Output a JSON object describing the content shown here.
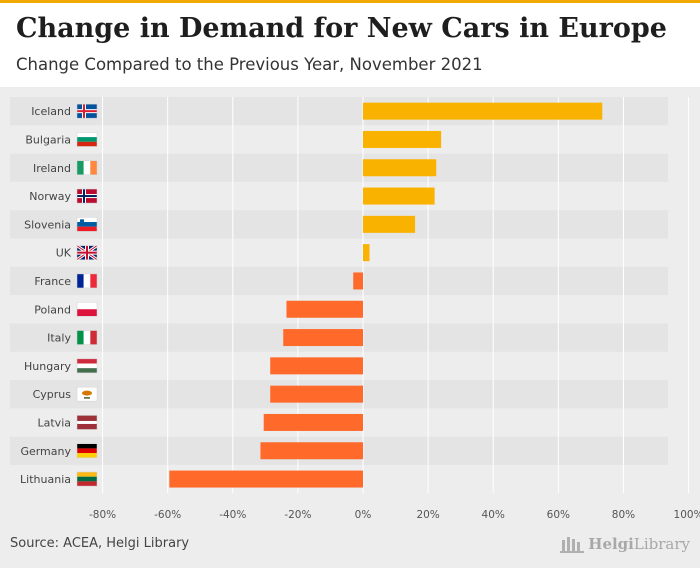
{
  "title": "Change in Demand for New Cars in Europe",
  "subtitle": "Change Compared to the Previous Year, November 2021",
  "source": "Source: ACEA, Helgi Library",
  "logo": "HelgiLibrary",
  "colors": {
    "positive": "#f9b200",
    "negative": "#ff6a2b",
    "accent": "#f2a900"
  },
  "chart_data": {
    "type": "bar",
    "orientation": "horizontal",
    "categories": [
      "Iceland",
      "Bulgaria",
      "Ireland",
      "Norway",
      "Slovenia",
      "UK",
      "France",
      "Poland",
      "Italy",
      "Hungary",
      "Cyprus",
      "Latvia",
      "Germany",
      "Lithuania"
    ],
    "flags": [
      "iceland-flag-icon",
      "bulgaria-flag-icon",
      "ireland-flag-icon",
      "norway-flag-icon",
      "slovenia-flag-icon",
      "uk-flag-icon",
      "france-flag-icon",
      "poland-flag-icon",
      "italy-flag-icon",
      "hungary-flag-icon",
      "cyprus-flag-icon",
      "latvia-flag-icon",
      "germany-flag-icon",
      "lithuania-flag-icon"
    ],
    "values": [
      73.5,
      24,
      22.5,
      22,
      16,
      2,
      -3,
      -23.5,
      -24.5,
      -28.5,
      -28.5,
      -30.5,
      -31.5,
      -59.5
    ],
    "xlim": [
      -80,
      100
    ],
    "ticks": [
      -80,
      -60,
      -40,
      -20,
      0,
      20,
      40,
      60,
      80,
      100
    ],
    "tick_labels": [
      "-80%",
      "-60%",
      "-40%",
      "-20%",
      "0%",
      "20%",
      "40%",
      "60%",
      "80%",
      "100%"
    ],
    "unit": "%",
    "grid": true
  }
}
